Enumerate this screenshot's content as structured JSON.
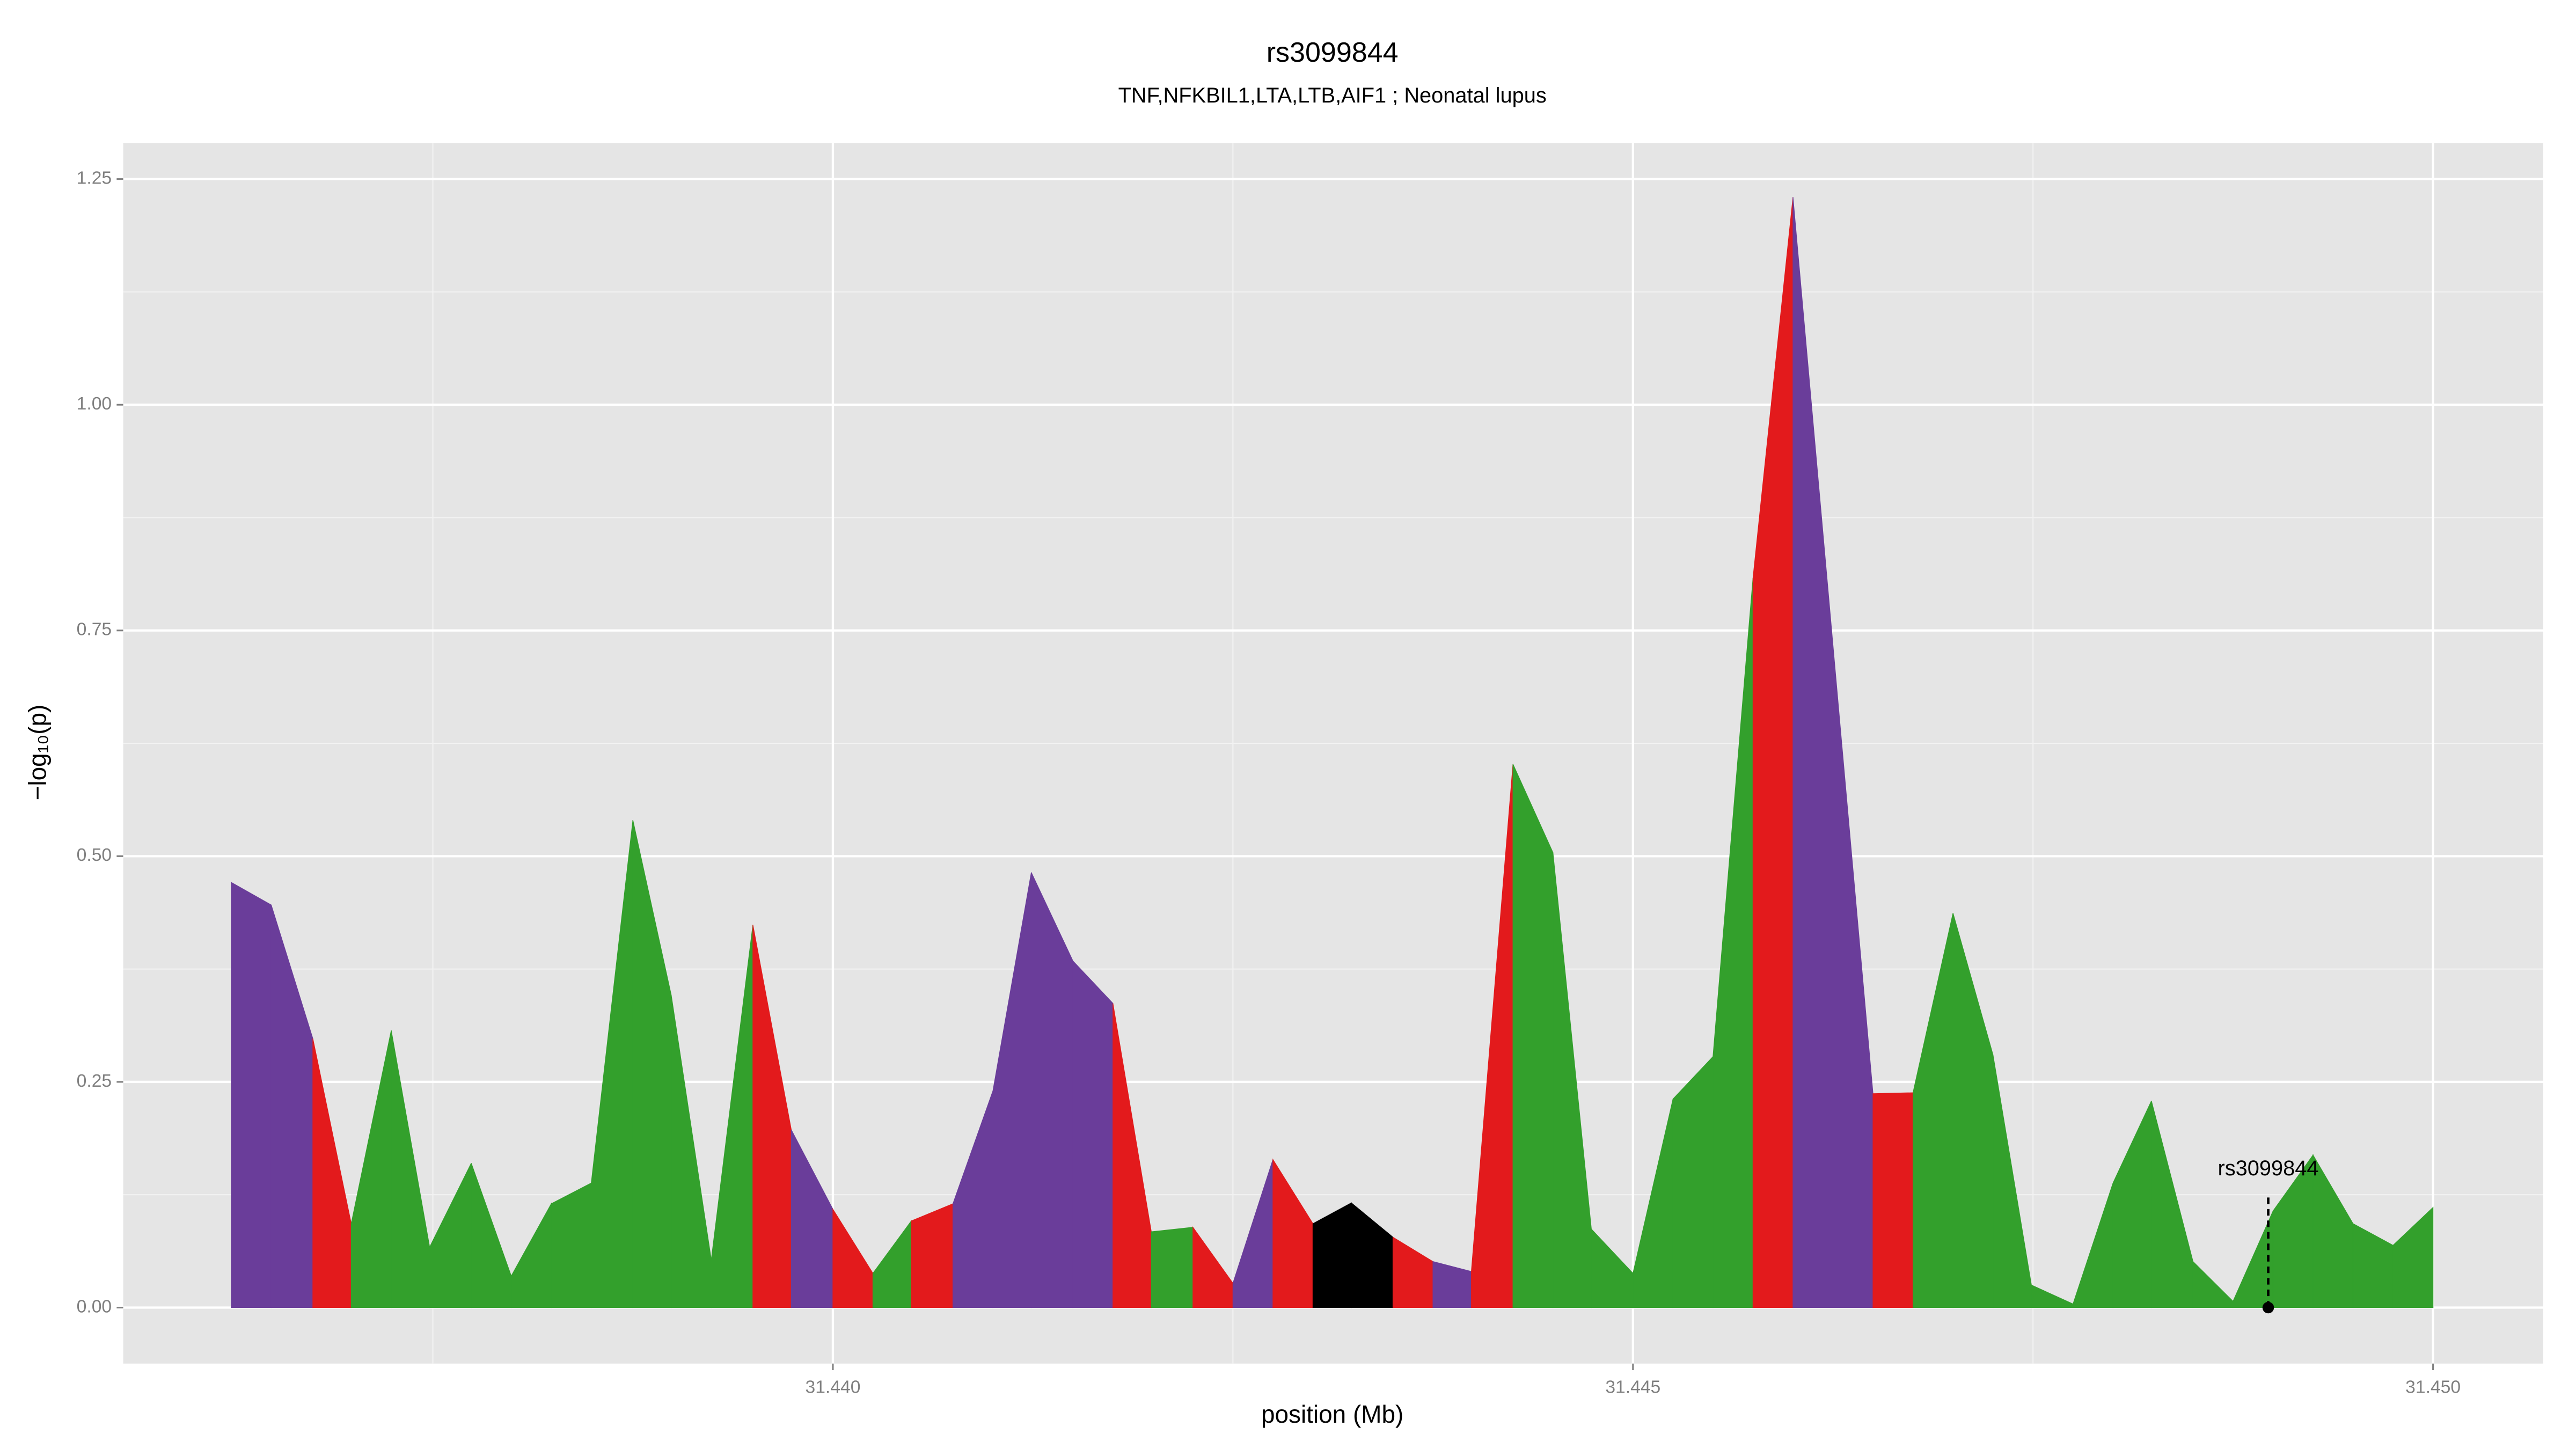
{
  "chart_data": {
    "type": "area",
    "title": "rs3099844",
    "subtitle": "TNF,NFKBIL1,LTA,LTB,AIF1 ; Neonatal lupus",
    "x_label": "position (Mb)",
    "y_label": "−log₁₀(p)",
    "x": [
      31.43624,
      31.43649,
      31.43675,
      31.43699,
      31.43724,
      31.43748,
      31.43774,
      31.43799,
      31.43824,
      31.43849,
      31.43875,
      31.43899,
      31.43924,
      31.4395,
      31.43974,
      31.44,
      31.44025,
      31.44049,
      31.44075,
      31.441,
      31.44124,
      31.4415,
      31.44175,
      31.44199,
      31.44225,
      31.4425,
      31.44275,
      31.443,
      31.44324,
      31.4435,
      31.44375,
      31.44399,
      31.44425,
      31.4445,
      31.44474,
      31.445,
      31.44525,
      31.4455,
      31.44575,
      31.446,
      31.4465,
      31.44675,
      31.447,
      31.44725,
      31.44749,
      31.44775,
      31.448,
      31.44824,
      31.4485,
      31.44875,
      31.449,
      31.44925,
      31.4495,
      31.44975,
      31.45
    ],
    "values": [
      0.471,
      0.446,
      0.298,
      0.093,
      0.307,
      0.067,
      0.16,
      0.035,
      0.115,
      0.138,
      0.54,
      0.346,
      0.053,
      0.424,
      0.197,
      0.109,
      0.038,
      0.096,
      0.115,
      0.24,
      0.482,
      0.384,
      0.337,
      0.084,
      0.089,
      0.027,
      0.164,
      0.093,
      0.116,
      0.078,
      0.051,
      0.04,
      0.602,
      0.504,
      0.087,
      0.038,
      0.231,
      0.278,
      0.808,
      1.23,
      0.237,
      0.238,
      0.437,
      0.28,
      0.025,
      0.004,
      0.138,
      0.229,
      0.051,
      0.007,
      0.107,
      0.169,
      0.093,
      0.069,
      0.111
    ],
    "segment_colors": [
      "#6a3d9a",
      "#6a3d9a",
      "#e31a1c",
      "#33a02c",
      "#33a02c",
      "#33a02c",
      "#33a02c",
      "#33a02c",
      "#33a02c",
      "#33a02c",
      "#33a02c",
      "#33a02c",
      "#33a02c",
      "#e31a1c",
      "#6a3d9a",
      "#e31a1c",
      "#33a02c",
      "#e31a1c",
      "#6a3d9a",
      "#6a3d9a",
      "#6a3d9a",
      "#6a3d9a",
      "#e31a1c",
      "#33a02c",
      "#e31a1c",
      "#6a3d9a",
      "#e31a1c",
      "#000000",
      "#000000",
      "#e31a1c",
      "#6a3d9a",
      "#e31a1c",
      "#33a02c",
      "#33a02c",
      "#33a02c",
      "#33a02c",
      "#33a02c",
      "#33a02c",
      "#e31a1c",
      "#6a3d9a",
      "#e31a1c",
      "#33a02c",
      "#33a02c",
      "#33a02c",
      "#33a02c",
      "#33a02c",
      "#33a02c",
      "#33a02c",
      "#33a02c",
      "#33a02c",
      "#33a02c",
      "#33a02c",
      "#33a02c",
      "#33a02c"
    ],
    "annotation": {
      "label": "rs3099844",
      "x": 31.44897,
      "y": 0
    },
    "xlim": [
      31.435565,
      31.450688
    ],
    "ylim": [
      -0.062,
      1.29
    ],
    "xticks": [
      {
        "value": 31.44,
        "label": "31.440"
      },
      31.445,
      {
        "value": 31.45,
        "label": "31.450"
      }
    ],
    "yticks": [
      {
        "value": 0,
        "label": "0.00"
      },
      0.25,
      {
        "value": 0.5,
        "label": "0.50"
      },
      0.75,
      {
        "value": 1,
        "label": "1.00"
      },
      {
        "value": 1.25,
        "label": "1.25"
      }
    ],
    "grid": true
  }
}
